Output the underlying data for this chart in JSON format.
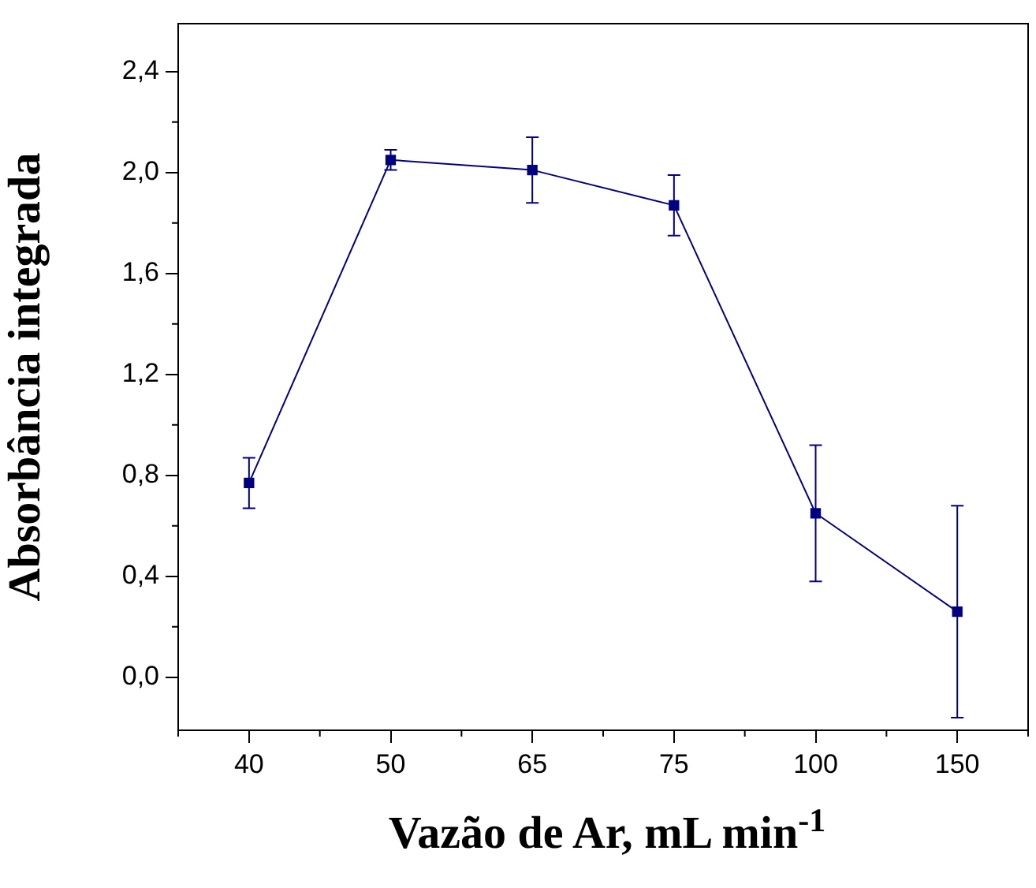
{
  "chart_data": {
    "type": "line",
    "xlabel": "Vazão de Ar, mL min$^{-1}$",
    "ylabel": "Absorbância integrada",
    "categories": [
      "40",
      "50",
      "65",
      "75",
      "100",
      "150"
    ],
    "series": [
      {
        "color": "#000080",
        "values": [
          0.77,
          2.05,
          2.01,
          1.87,
          0.65,
          0.26
        ],
        "errors": [
          0.1,
          0.04,
          0.13,
          0.12,
          0.27,
          0.42
        ]
      }
    ],
    "ylim": [
      -0.21,
      2.59
    ],
    "yticks": [
      {
        "value": 0,
        "label": "0,0"
      },
      {
        "value": 0.4,
        "label": "0,4"
      },
      {
        "value": 0.8,
        "label": "0,8"
      },
      {
        "value": 1.2,
        "label": "1,2"
      },
      {
        "value": 1.6,
        "label": "1,6"
      },
      {
        "value": 2.0,
        "label": "2,0"
      },
      {
        "value": 2.4,
        "label": "2,4"
      }
    ],
    "grid": false,
    "legend": false,
    "marker": "square",
    "line_style": "solid"
  }
}
